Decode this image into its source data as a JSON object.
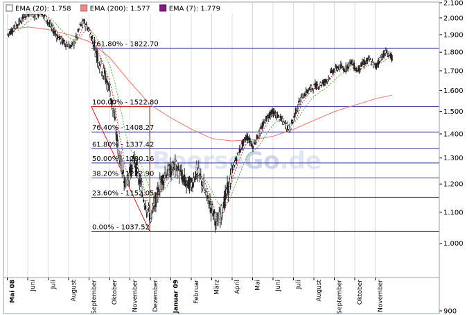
{
  "colors": {
    "background": "#ffffff",
    "frame": "#9aa3ad",
    "grid": "#dcdcdc",
    "fib_line": "#3333aa",
    "ema20": "#5fa83a",
    "ema200": "#e88b84",
    "ema7": "#cc2222",
    "candle_body": "#222222",
    "candle_up": "#ffffff",
    "retracement_triangle": "#cc2222",
    "watermark": "#b8c6e0"
  },
  "legend": [
    {
      "label": "EMA (20): 1.758",
      "swatch": "#ffffff",
      "border": "#666666"
    },
    {
      "label": "EMA (200): 1.577",
      "swatch": "#e88b84",
      "border": "#b06060"
    },
    {
      "label": "EMA (7): 1.779",
      "swatch": "#8a1a8a",
      "border": "#4a0a4a"
    }
  ],
  "watermark_left": "Boerse",
  "watermark_right": "Go",
  "watermark_suffix": ".de",
  "chart_data": {
    "type": "candlestick",
    "x_unit": "months since May 2008",
    "xlim": [
      0,
      19.2
    ],
    "ylim": [
      900,
      2100
    ],
    "y_scale": "log",
    "y_ticks": [
      {
        "value": 2100,
        "label": "2.100"
      },
      {
        "value": 2000,
        "label": "2.000"
      },
      {
        "value": 1900,
        "label": "1.900"
      },
      {
        "value": 1800,
        "label": "1.800"
      },
      {
        "value": 1700,
        "label": "1.700"
      },
      {
        "value": 1600,
        "label": "1.600"
      },
      {
        "value": 1500,
        "label": "1.500"
      },
      {
        "value": 1400,
        "label": "1.400"
      },
      {
        "value": 1300,
        "label": "1.300"
      },
      {
        "value": 1200,
        "label": "1.200"
      },
      {
        "value": 1100,
        "label": "1.100"
      },
      {
        "value": 1000,
        "label": "1.000"
      },
      {
        "value": 900,
        "label": "900"
      }
    ],
    "x_ticks": [
      {
        "label": "Mai 08",
        "bold": true
      },
      {
        "label": "Juni"
      },
      {
        "label": "Juli"
      },
      {
        "label": "August"
      },
      {
        "label": "September"
      },
      {
        "label": "Oktober"
      },
      {
        "label": "November"
      },
      {
        "label": "Dezember"
      },
      {
        "label": "Januar 09",
        "bold": true
      },
      {
        "label": "Februar"
      },
      {
        "label": "März"
      },
      {
        "label": "April"
      },
      {
        "label": "Mai"
      },
      {
        "label": "Juni"
      },
      {
        "label": "Juli"
      },
      {
        "label": "August"
      },
      {
        "label": "September"
      },
      {
        "label": "Oktober"
      },
      {
        "label": "November"
      }
    ],
    "fibonacci_levels": [
      {
        "label": "161.80% - 1822.70",
        "value": 1822.7
      },
      {
        "label": "100.00% - 1522.80",
        "value": 1522.8
      },
      {
        "label": "76.40% - 1408.27",
        "value": 1408.27
      },
      {
        "label": "61.80% - 1337.42",
        "value": 1337.42
      },
      {
        "label": "50.00% - 1280.16",
        "value": 1280.16
      },
      {
        "label": "38.20% - 1222.90",
        "value": 1222.9
      },
      {
        "label": "23.60% - 1152.05",
        "value": 1152.05
      },
      {
        "label": "0.00% - 1037.52",
        "value": 1037.52
      }
    ],
    "retracement_triangle": [
      {
        "x": 4.1,
        "y": 1522.8
      },
      {
        "x": 6.95,
        "y": 1522.8
      },
      {
        "x": 6.95,
        "y": 1037.52
      }
    ],
    "price_path": [
      [
        0.0,
        1900
      ],
      [
        0.4,
        1950
      ],
      [
        0.8,
        2010
      ],
      [
        1.1,
        2040
      ],
      [
        1.4,
        2010
      ],
      [
        1.6,
        2045
      ],
      [
        1.9,
        1990
      ],
      [
        2.2,
        1930
      ],
      [
        2.5,
        1880
      ],
      [
        2.8,
        1850
      ],
      [
        3.1,
        1830
      ],
      [
        3.3,
        1860
      ],
      [
        3.55,
        1950
      ],
      [
        3.75,
        1975
      ],
      [
        4.0,
        1920
      ],
      [
        4.2,
        1850
      ],
      [
        4.45,
        1760
      ],
      [
        4.7,
        1690
      ],
      [
        5.0,
        1600
      ],
      [
        5.2,
        1480
      ],
      [
        5.4,
        1340
      ],
      [
        5.6,
        1260
      ],
      [
        5.8,
        1200
      ],
      [
        6.0,
        1250
      ],
      [
        6.2,
        1290
      ],
      [
        6.4,
        1230
      ],
      [
        6.6,
        1160
      ],
      [
        6.8,
        1120
      ],
      [
        7.0,
        1080
      ],
      [
        7.2,
        1130
      ],
      [
        7.45,
        1200
      ],
      [
        7.7,
        1240
      ],
      [
        7.95,
        1250
      ],
      [
        8.2,
        1270
      ],
      [
        8.5,
        1230
      ],
      [
        8.75,
        1200
      ],
      [
        9.0,
        1200
      ],
      [
        9.25,
        1250
      ],
      [
        9.5,
        1210
      ],
      [
        9.75,
        1150
      ],
      [
        10.0,
        1110
      ],
      [
        10.25,
        1060
      ],
      [
        10.5,
        1110
      ],
      [
        10.8,
        1190
      ],
      [
        11.1,
        1280
      ],
      [
        11.4,
        1340
      ],
      [
        11.7,
        1390
      ],
      [
        12.0,
        1350
      ],
      [
        12.3,
        1400
      ],
      [
        12.6,
        1460
      ],
      [
        12.9,
        1500
      ],
      [
        13.2,
        1480
      ],
      [
        13.5,
        1450
      ],
      [
        13.8,
        1420
      ],
      [
        14.1,
        1500
      ],
      [
        14.4,
        1570
      ],
      [
        14.7,
        1600
      ],
      [
        15.0,
        1620
      ],
      [
        15.3,
        1630
      ],
      [
        15.6,
        1650
      ],
      [
        15.9,
        1700
      ],
      [
        16.2,
        1720
      ],
      [
        16.5,
        1710
      ],
      [
        16.8,
        1750
      ],
      [
        17.1,
        1700
      ],
      [
        17.4,
        1740
      ],
      [
        17.7,
        1760
      ],
      [
        18.0,
        1720
      ],
      [
        18.3,
        1780
      ],
      [
        18.5,
        1800
      ],
      [
        18.65,
        1790
      ],
      [
        18.8,
        1770
      ]
    ],
    "ema200_path": [
      [
        0.0,
        1930
      ],
      [
        1.0,
        1945
      ],
      [
        2.0,
        1930
      ],
      [
        3.0,
        1900
      ],
      [
        4.0,
        1860
      ],
      [
        5.0,
        1770
      ],
      [
        6.0,
        1640
      ],
      [
        7.0,
        1530
      ],
      [
        8.0,
        1470
      ],
      [
        9.0,
        1420
      ],
      [
        10.0,
        1380
      ],
      [
        11.0,
        1370
      ],
      [
        12.0,
        1375
      ],
      [
        13.0,
        1390
      ],
      [
        14.0,
        1420
      ],
      [
        15.0,
        1460
      ],
      [
        16.0,
        1500
      ],
      [
        17.0,
        1530
      ],
      [
        18.0,
        1560
      ],
      [
        18.8,
        1577
      ]
    ]
  }
}
